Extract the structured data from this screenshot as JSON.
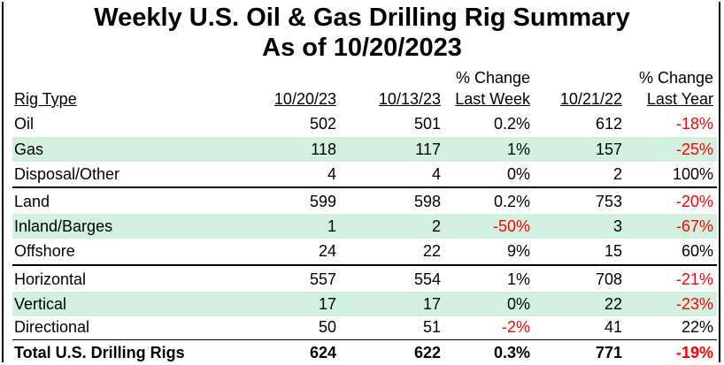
{
  "title_line1": "Weekly U.S. Oil & Gas Drilling Rig Summary",
  "title_line2": "As of 10/20/2023",
  "headers": {
    "rig_type": "Rig Type",
    "d1": "10/20/23",
    "d2": "10/13/23",
    "chg_week_top": "% Change",
    "chg_week_bottom": "Last Week",
    "d3": "10/21/22",
    "chg_year_top": "% Change",
    "chg_year_bottom": "Last Year"
  },
  "rows": [
    {
      "type": "Oil",
      "d1": "502",
      "d2": "501",
      "week": "0.2%",
      "d3": "612",
      "year": "-18%"
    },
    {
      "type": "Gas",
      "d1": "118",
      "d2": "117",
      "week": "1%",
      "d3": "157",
      "year": "-25%"
    },
    {
      "type": "Disposal/Other",
      "d1": "4",
      "d2": "4",
      "week": "0%",
      "d3": "2",
      "year": "100%"
    },
    {
      "type": "Land",
      "d1": "599",
      "d2": "598",
      "week": "0.2%",
      "d3": "753",
      "year": "-20%"
    },
    {
      "type": "Inland/Barges",
      "d1": "1",
      "d2": "2",
      "week": "-50%",
      "d3": "3",
      "year": "-67%"
    },
    {
      "type": "Offshore",
      "d1": "24",
      "d2": "22",
      "week": "9%",
      "d3": "15",
      "year": "60%"
    },
    {
      "type": "Horizontal",
      "d1": "557",
      "d2": "554",
      "week": "1%",
      "d3": "708",
      "year": "-21%"
    },
    {
      "type": "Vertical",
      "d1": "17",
      "d2": "17",
      "week": "0%",
      "d3": "22",
      "year": "-23%"
    },
    {
      "type": "Directional",
      "d1": "50",
      "d2": "51",
      "week": "-2%",
      "d3": "41",
      "year": "22%"
    }
  ],
  "total": {
    "type": "Total U.S. Drilling Rigs",
    "d1": "624",
    "d2": "622",
    "week": "0.3%",
    "d3": "771",
    "year": "-19%"
  },
  "colors": {
    "negative": "#ff0000",
    "band": "#d2f0df"
  }
}
